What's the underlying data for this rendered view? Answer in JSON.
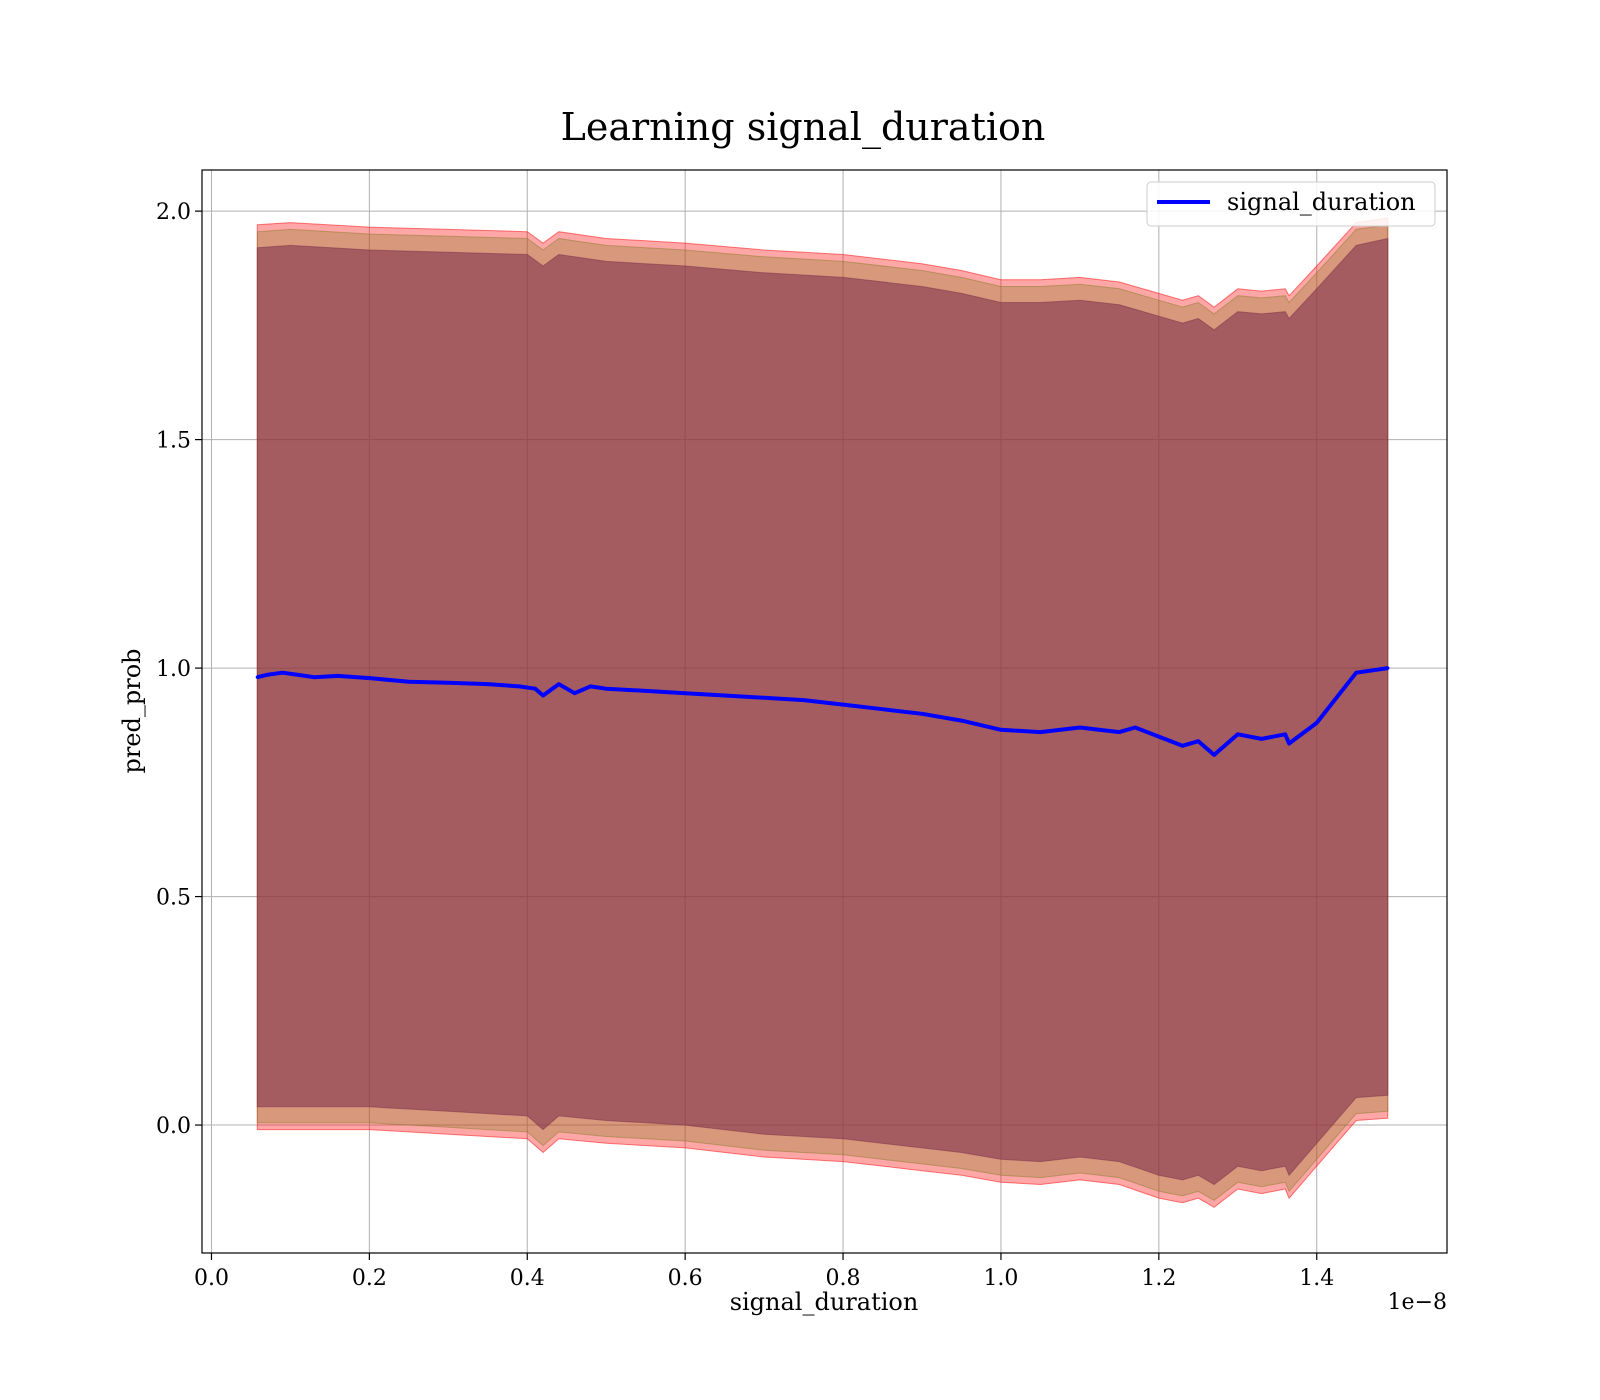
{
  "chart_data": {
    "type": "line",
    "title": "Learning signal_duration",
    "xlabel": "signal_duration",
    "ylabel": "pred_prob",
    "x_offset_text": "1e−8",
    "xlim": [
      -0.012,
      1.565
    ],
    "ylim": [
      -0.28,
      2.09
    ],
    "x_ticks": [
      0.0,
      0.2,
      0.4,
      0.6,
      0.8,
      1.0,
      1.2,
      1.4
    ],
    "x_tick_labels": [
      "0.0",
      "0.2",
      "0.4",
      "0.6",
      "0.8",
      "1.0",
      "1.2",
      "1.4"
    ],
    "y_ticks": [
      0.0,
      0.5,
      1.0,
      1.5,
      2.0
    ],
    "y_tick_labels": [
      "0.0",
      "0.5",
      "1.0",
      "1.5",
      "2.0"
    ],
    "grid": true,
    "legend_position": "top-right",
    "series": [
      {
        "name": "signal_duration",
        "color": "#0000ff",
        "x": [
          0.058,
          0.07,
          0.09,
          0.11,
          0.13,
          0.16,
          0.2,
          0.25,
          0.3,
          0.35,
          0.39,
          0.41,
          0.42,
          0.44,
          0.46,
          0.48,
          0.5,
          0.55,
          0.6,
          0.65,
          0.7,
          0.75,
          0.8,
          0.85,
          0.9,
          0.95,
          1.0,
          1.05,
          1.1,
          1.15,
          1.17,
          1.2,
          1.23,
          1.25,
          1.27,
          1.3,
          1.33,
          1.36,
          1.365,
          1.4,
          1.45,
          1.49
        ],
        "y": [
          0.98,
          0.985,
          0.99,
          0.985,
          0.98,
          0.983,
          0.978,
          0.97,
          0.968,
          0.965,
          0.96,
          0.955,
          0.94,
          0.965,
          0.945,
          0.96,
          0.955,
          0.95,
          0.945,
          0.94,
          0.935,
          0.93,
          0.92,
          0.91,
          0.9,
          0.885,
          0.865,
          0.86,
          0.87,
          0.86,
          0.87,
          0.85,
          0.83,
          0.84,
          0.81,
          0.855,
          0.845,
          0.855,
          0.835,
          0.88,
          0.99,
          1.0
        ]
      }
    ],
    "bands": [
      {
        "color": "#ff0000",
        "opacity": 0.35,
        "x": [
          0.058,
          0.1,
          0.2,
          0.3,
          0.4,
          0.42,
          0.44,
          0.5,
          0.6,
          0.7,
          0.8,
          0.9,
          0.95,
          1.0,
          1.05,
          1.1,
          1.15,
          1.2,
          1.23,
          1.25,
          1.27,
          1.3,
          1.33,
          1.36,
          1.365,
          1.4,
          1.45,
          1.49
        ],
        "upper": [
          1.97,
          1.975,
          1.965,
          1.96,
          1.955,
          1.93,
          1.955,
          1.94,
          1.93,
          1.915,
          1.905,
          1.885,
          1.87,
          1.85,
          1.85,
          1.855,
          1.845,
          1.82,
          1.805,
          1.815,
          1.79,
          1.83,
          1.825,
          1.83,
          1.815,
          1.88,
          1.975,
          1.985
        ],
        "lower": [
          -0.01,
          -0.01,
          -0.01,
          -0.02,
          -0.03,
          -0.06,
          -0.03,
          -0.04,
          -0.05,
          -0.07,
          -0.08,
          -0.1,
          -0.11,
          -0.125,
          -0.13,
          -0.12,
          -0.13,
          -0.16,
          -0.17,
          -0.16,
          -0.18,
          -0.14,
          -0.15,
          -0.14,
          -0.16,
          -0.09,
          0.01,
          0.015
        ]
      },
      {
        "color": "#8b7d2b",
        "opacity": 0.35,
        "x": [
          0.058,
          0.1,
          0.2,
          0.3,
          0.4,
          0.42,
          0.44,
          0.5,
          0.6,
          0.7,
          0.8,
          0.9,
          0.95,
          1.0,
          1.05,
          1.1,
          1.15,
          1.2,
          1.23,
          1.25,
          1.27,
          1.3,
          1.33,
          1.36,
          1.365,
          1.4,
          1.45,
          1.49
        ],
        "upper": [
          1.955,
          1.96,
          1.95,
          1.945,
          1.94,
          1.915,
          1.94,
          1.925,
          1.915,
          1.9,
          1.89,
          1.87,
          1.855,
          1.835,
          1.835,
          1.84,
          1.83,
          1.805,
          1.79,
          1.8,
          1.775,
          1.815,
          1.81,
          1.815,
          1.8,
          1.865,
          1.96,
          1.97
        ],
        "lower": [
          0.005,
          0.005,
          0.005,
          -0.005,
          -0.015,
          -0.045,
          -0.015,
          -0.025,
          -0.035,
          -0.055,
          -0.065,
          -0.085,
          -0.095,
          -0.11,
          -0.115,
          -0.105,
          -0.115,
          -0.145,
          -0.155,
          -0.145,
          -0.165,
          -0.125,
          -0.135,
          -0.125,
          -0.145,
          -0.075,
          0.025,
          0.03
        ]
      },
      {
        "color": "#7b2c4a",
        "opacity": 0.55,
        "x": [
          0.058,
          0.1,
          0.2,
          0.3,
          0.4,
          0.42,
          0.44,
          0.5,
          0.6,
          0.7,
          0.8,
          0.9,
          0.95,
          1.0,
          1.05,
          1.1,
          1.15,
          1.2,
          1.23,
          1.25,
          1.27,
          1.3,
          1.33,
          1.36,
          1.365,
          1.4,
          1.45,
          1.49
        ],
        "upper": [
          1.92,
          1.925,
          1.915,
          1.91,
          1.905,
          1.88,
          1.905,
          1.89,
          1.88,
          1.865,
          1.855,
          1.835,
          1.82,
          1.8,
          1.8,
          1.805,
          1.795,
          1.77,
          1.755,
          1.765,
          1.74,
          1.78,
          1.775,
          1.78,
          1.765,
          1.83,
          1.925,
          1.94
        ],
        "lower": [
          0.04,
          0.04,
          0.04,
          0.03,
          0.02,
          -0.01,
          0.02,
          0.01,
          0.0,
          -0.02,
          -0.03,
          -0.05,
          -0.06,
          -0.075,
          -0.08,
          -0.07,
          -0.08,
          -0.11,
          -0.12,
          -0.11,
          -0.13,
          -0.09,
          -0.1,
          -0.09,
          -0.11,
          -0.04,
          0.06,
          0.065
        ]
      }
    ]
  }
}
